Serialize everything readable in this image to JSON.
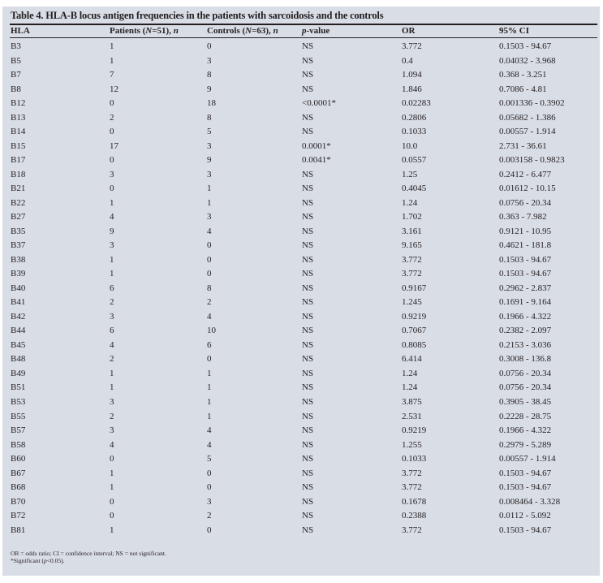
{
  "title": "Table 4. HLA-B locus antigen frequencies in the patients with sarcoidosis and the controls",
  "headers": {
    "hla": "HLA",
    "patients_pre": "Patients (",
    "patients_N": "N",
    "patients_post": "=51), ",
    "patients_n": "n",
    "controls_pre": "Controls (",
    "controls_N": "N",
    "controls_post": "=63), ",
    "controls_n": "n",
    "p_italic": "p",
    "p_rest": "-value",
    "or": "OR",
    "ci": "95% CI"
  },
  "rows": [
    [
      "B3",
      "1",
      "0",
      "NS",
      "3.772",
      "0.1503 - 94.67"
    ],
    [
      "B5",
      "1",
      "3",
      "NS",
      "0.4",
      "0.04032 - 3.968"
    ],
    [
      "B7",
      "7",
      "8",
      "NS",
      "1.094",
      "0.368 - 3.251"
    ],
    [
      "B8",
      "12",
      "9",
      "NS",
      "1.846",
      "0.7086 - 4.81"
    ],
    [
      "B12",
      "0",
      "18",
      "<0.0001*",
      "0.02283",
      "0.001336 - 0.3902"
    ],
    [
      "B13",
      "2",
      "8",
      "NS",
      "0.2806",
      "0.05682 - 1.386"
    ],
    [
      "B14",
      "0",
      "5",
      "NS",
      "0.1033",
      "0.00557 - 1.914"
    ],
    [
      "B15",
      "17",
      "3",
      "0.0001*",
      "10.0",
      "2.731 - 36.61"
    ],
    [
      "B17",
      "0",
      "9",
      "0.0041*",
      "0.0557",
      "0.003158 - 0.9823"
    ],
    [
      "B18",
      "3",
      "3",
      "NS",
      "1.25",
      "0.2412 - 6.477"
    ],
    [
      "B21",
      "0",
      "1",
      "NS",
      "0.4045",
      "0.01612 - 10.15"
    ],
    [
      "B22",
      "1",
      "1",
      "NS",
      "1.24",
      "0.0756 - 20.34"
    ],
    [
      "B27",
      "4",
      "3",
      "NS",
      "1.702",
      "0.363 - 7.982"
    ],
    [
      "B35",
      "9",
      "4",
      "NS",
      "3.161",
      "0.9121 - 10.95"
    ],
    [
      "B37",
      "3",
      "0",
      "NS",
      "9.165",
      "0.4621 - 181.8"
    ],
    [
      "B38",
      "1",
      "0",
      "NS",
      "3.772",
      "0.1503 - 94.67"
    ],
    [
      "B39",
      "1",
      "0",
      "NS",
      "3.772",
      "0.1503 - 94.67"
    ],
    [
      "B40",
      "6",
      "8",
      "NS",
      "0.9167",
      "0.2962 - 2.837"
    ],
    [
      "B41",
      "2",
      "2",
      "NS",
      "1.245",
      "0.1691 - 9.164"
    ],
    [
      "B42",
      "3",
      "4",
      "NS",
      "0.9219",
      "0.1966 - 4.322"
    ],
    [
      "B44",
      "6",
      "10",
      "NS",
      "0.7067",
      "0.2382 - 2.097"
    ],
    [
      "B45",
      "4",
      "6",
      "NS",
      "0.8085",
      "0.2153 - 3.036"
    ],
    [
      "B48",
      "2",
      "0",
      "NS",
      "6.414",
      "0.3008 - 136.8"
    ],
    [
      "B49",
      "1",
      "1",
      "NS",
      "1.24",
      "0.0756 - 20.34"
    ],
    [
      "B51",
      "1",
      "1",
      "NS",
      "1.24",
      "0.0756 - 20.34"
    ],
    [
      "B53",
      "3",
      "1",
      "NS",
      "3.875",
      "0.3905 - 38.45"
    ],
    [
      "B55",
      "2",
      "1",
      "NS",
      "2.531",
      "0.2228 - 28.75"
    ],
    [
      "B57",
      "3",
      "4",
      "NS",
      "0.9219",
      "0.1966 - 4.322"
    ],
    [
      "B58",
      "4",
      "4",
      "NS",
      "1.255",
      "0.2979 - 5.289"
    ],
    [
      "B60",
      "0",
      "5",
      "NS",
      "0.1033",
      "0.00557 - 1.914"
    ],
    [
      "B67",
      "1",
      "0",
      "NS",
      "3.772",
      "0.1503 - 94.67"
    ],
    [
      "B68",
      "1",
      "0",
      "NS",
      "3.772",
      "0.1503 - 94.67"
    ],
    [
      "B70",
      "0",
      "3",
      "NS",
      "0.1678",
      "0.008464 - 3.328"
    ],
    [
      "B72",
      "0",
      "2",
      "NS",
      "0.2388",
      "0.0112 - 5.092"
    ],
    [
      "B81",
      "1",
      "0",
      "NS",
      "3.772",
      "0.1503 - 94.67"
    ]
  ],
  "footnotes": {
    "line1": "OR = odds ratio; CI = confidence interval; NS = not significant.",
    "line2_pre": "*Significant (",
    "line2_p": "p",
    "line2_post": "<0.05)."
  }
}
